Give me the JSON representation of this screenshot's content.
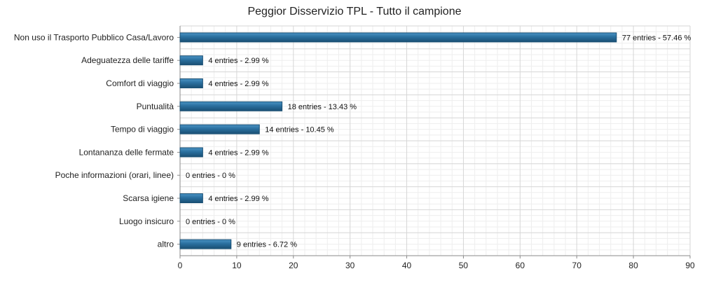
{
  "chart_data": {
    "type": "bar",
    "orientation": "horizontal",
    "title": "Peggior Disservizio TPL - Tutto il campione",
    "categories": [
      "Non uso il Trasporto Pubblico Casa/Lavoro",
      "Adeguatezza delle tariffe",
      "Comfort di viaggio",
      "Puntualità",
      "Tempo di viaggio",
      "Lontananza delle fermate",
      "Poche informazioni (orari, linee)",
      "Scarsa igiene",
      "Luogo insicuro",
      "altro"
    ],
    "values": [
      77,
      4,
      4,
      18,
      14,
      4,
      0,
      4,
      0,
      9
    ],
    "data_labels": [
      "77 entries - 57.46 %",
      "4 entries - 2.99 %",
      "4 entries - 2.99 %",
      "18 entries - 13.43 %",
      "14 entries - 10.45 %",
      "4 entries - 2.99 %",
      "0 entries - 0 %",
      "4 entries - 2.99 %",
      "0 entries - 0 %",
      "9 entries - 6.72 %"
    ],
    "xlim": [
      0,
      90
    ],
    "x_ticks": [
      0,
      10,
      20,
      30,
      40,
      50,
      60,
      70,
      80,
      90
    ],
    "grid": true,
    "colors": {
      "bar": "#2a6f9e",
      "bar_light": "#4a93c4",
      "bar_dark": "#1a4f73",
      "grid_major": "#d6d6d6",
      "grid_minor": "#eeeeee"
    }
  }
}
